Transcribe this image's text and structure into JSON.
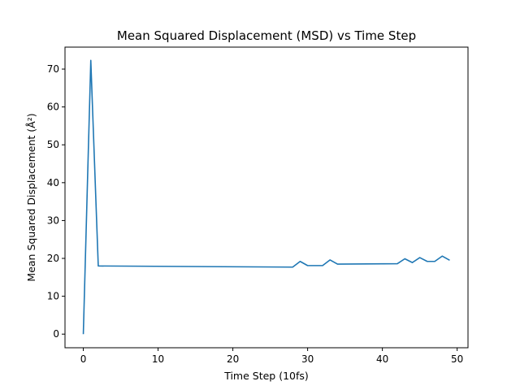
{
  "chart_data": {
    "type": "line",
    "title": "Mean Squared Displacement (MSD) vs Time Step",
    "xlabel": "Time Step (10fs)",
    "ylabel": "Mean Squared Displacement (Å²)",
    "xlim": [
      -2.45,
      51.45
    ],
    "ylim": [
      -3.6,
      75.8
    ],
    "xticks": [
      0,
      10,
      20,
      30,
      40,
      50
    ],
    "yticks": [
      0,
      10,
      20,
      30,
      40,
      50,
      60,
      70
    ],
    "grid": false,
    "line_color": "#1f77b4",
    "series": [
      {
        "x": [
          0,
          1,
          2,
          28,
          29,
          30,
          31,
          32,
          33,
          34,
          42,
          43,
          44,
          45,
          46,
          47,
          48,
          49
        ],
        "y": [
          0,
          72.3,
          18.0,
          17.7,
          19.2,
          18.1,
          18.1,
          18.1,
          19.6,
          18.5,
          18.6,
          19.9,
          18.9,
          20.2,
          19.2,
          19.2,
          20.6,
          19.5
        ]
      }
    ]
  }
}
